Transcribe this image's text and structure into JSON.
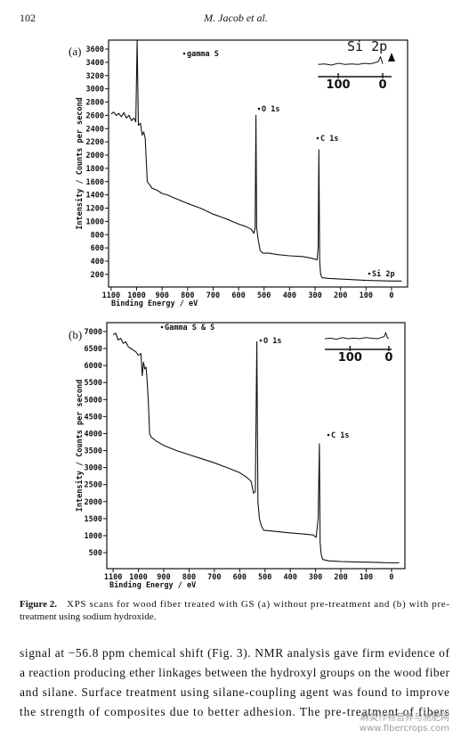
{
  "header": {
    "page_number": "102",
    "running_head": "M. Jacob et al."
  },
  "chart_data": [
    {
      "type": "line",
      "panel_label": "(a)",
      "x_label": "Binding Energy / eV",
      "y_label": "Intensity / Counts per second",
      "xlim": [
        1110,
        -63
      ],
      "xticks": [
        1100,
        1000,
        900,
        800,
        700,
        600,
        500,
        400,
        300,
        200,
        100,
        0
      ],
      "ylim": [
        10,
        3735
      ],
      "yticks": [
        200,
        400,
        600,
        800,
        1000,
        1200,
        1400,
        1600,
        1800,
        2000,
        2200,
        2400,
        2600,
        2800,
        3000,
        3200,
        3400,
        3600
      ],
      "color": "#111111",
      "x": [
        1100,
        1090,
        1080,
        1070,
        1060,
        1050,
        1040,
        1030,
        1020,
        1010,
        1003,
        998,
        993,
        985,
        978,
        972,
        966,
        962,
        958,
        950,
        940,
        920,
        900,
        880,
        850,
        800,
        750,
        700,
        650,
        600,
        570,
        550,
        540,
        535,
        532,
        529,
        522,
        515,
        505,
        480,
        450,
        400,
        350,
        320,
        300,
        292,
        288,
        285,
        282,
        278,
        272,
        250,
        200,
        150,
        100,
        50,
        0,
        -40
      ],
      "values": [
        2620,
        2650,
        2600,
        2630,
        2580,
        2640,
        2560,
        2600,
        2520,
        2560,
        2500,
        3730,
        2450,
        2480,
        2300,
        2350,
        2250,
        1900,
        1600,
        1560,
        1500,
        1470,
        1420,
        1400,
        1350,
        1270,
        1200,
        1110,
        1040,
        960,
        920,
        880,
        820,
        900,
        2600,
        900,
        700,
        560,
        520,
        520,
        500,
        480,
        470,
        450,
        430,
        420,
        600,
        2080,
        400,
        200,
        150,
        140,
        130,
        120,
        110,
        105,
        100,
        100
      ],
      "annotations": [
        "gamma S",
        "O 1s",
        "C 1s",
        "Si 2p"
      ],
      "inset": {
        "label": "Si 2p",
        "xlim": [
          145,
          -20
        ],
        "xticks": [
          100,
          0
        ],
        "ylim": [
          0,
          40
        ],
        "x": [
          145,
          130,
          115,
          100,
          85,
          70,
          55,
          40,
          28,
          18,
          10,
          5,
          3,
          0
        ],
        "values": [
          21,
          22,
          20,
          23,
          21,
          22,
          21,
          23,
          22,
          24,
          26,
          34,
          30,
          22
        ]
      }
    },
    {
      "type": "line",
      "panel_label": "(b)",
      "x_label": "Binding Energy / eV",
      "y_label": "Intensity / Counts per second",
      "xlim": [
        1125,
        -53
      ],
      "xticks": [
        1100,
        1000,
        900,
        800,
        700,
        600,
        500,
        400,
        300,
        200,
        100,
        0
      ],
      "ylim": [
        30,
        7260
      ],
      "yticks": [
        500,
        1000,
        1500,
        2000,
        2500,
        3000,
        3500,
        4000,
        4500,
        5000,
        5500,
        6000,
        6500,
        7000
      ],
      "color": "#111111",
      "x": [
        1100,
        1090,
        1080,
        1070,
        1060,
        1050,
        1040,
        1030,
        1020,
        1010,
        1000,
        990,
        985,
        980,
        975,
        970,
        965,
        960,
        956,
        950,
        930,
        900,
        850,
        800,
        750,
        700,
        650,
        600,
        570,
        555,
        545,
        538,
        532,
        528,
        522,
        515,
        505,
        480,
        450,
        400,
        350,
        310,
        298,
        290,
        285,
        282,
        278,
        272,
        250,
        200,
        150,
        100,
        50,
        0,
        -30
      ],
      "values": [
        6900,
        6950,
        6750,
        6800,
        6650,
        6700,
        6550,
        6500,
        6450,
        6400,
        6300,
        6350,
        5700,
        6100,
        5900,
        5950,
        5500,
        4800,
        4000,
        3900,
        3780,
        3650,
        3500,
        3380,
        3260,
        3140,
        3000,
        2850,
        2700,
        2600,
        2250,
        2300,
        6700,
        2000,
        1500,
        1300,
        1160,
        1140,
        1120,
        1080,
        1050,
        1020,
        950,
        1500,
        3700,
        800,
        450,
        300,
        260,
        240,
        230,
        220,
        210,
        200,
        200
      ],
      "annotations": [
        "Gamma S & S",
        "O 1s",
        "C 1s"
      ],
      "inset": {
        "xlim": [
          165,
          -7
        ],
        "xticks": [
          100,
          0
        ],
        "ylim": [
          0,
          40
        ],
        "x": [
          165,
          150,
          135,
          120,
          105,
          90,
          75,
          60,
          45,
          30,
          20,
          12,
          8,
          4,
          0
        ],
        "values": [
          20,
          21,
          19,
          22,
          20,
          21,
          20,
          22,
          21,
          20,
          22,
          24,
          31,
          22,
          20
        ]
      }
    }
  ],
  "caption": {
    "label": "Figure 2.",
    "lines": [
      "XPS scans for wood fiber treated with GS (a) without pre-treatment and (b) with pre-",
      "treatment using sodium hydroxide."
    ]
  },
  "body": {
    "lines": [
      "signal at −56.8 ppm chemical shift (Fig. 3). NMR analysis gave firm evidence of",
      "a reaction producing ether linkages between the hydroxyl groups on the wood fiber",
      "and silane.  Surface treatment using silane-coupling agent was found to improve",
      "the strength of composites due to better adhesion.  The pre-treatment of fibers"
    ]
  },
  "watermark": {
    "site_name": "麻类作物营养与施肥网",
    "url": "www.fibercrops.com"
  }
}
